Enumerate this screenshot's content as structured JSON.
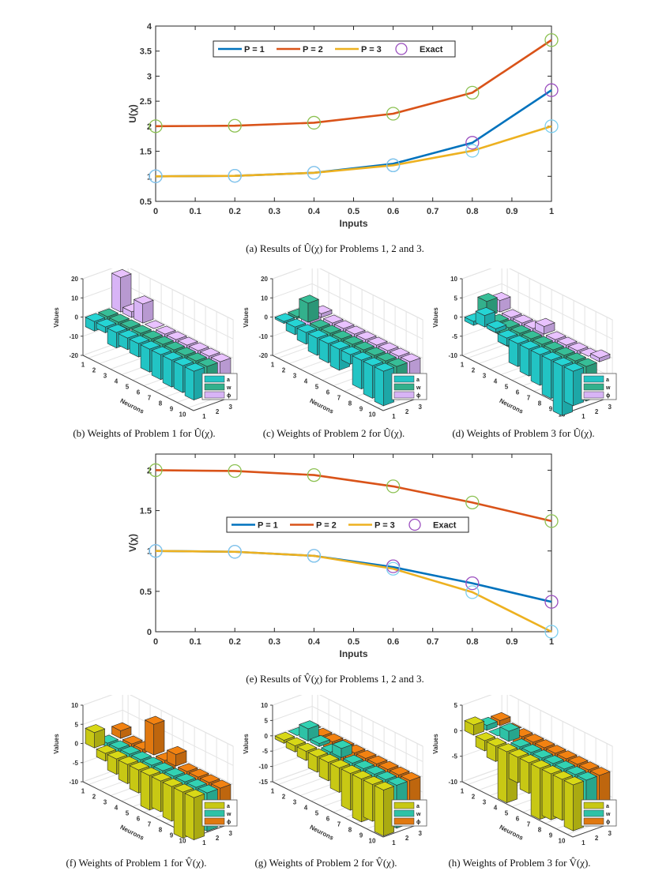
{
  "chart_data": [
    {
      "id": "a",
      "type": "line",
      "title": "",
      "xlabel": "Inputs",
      "ylabel": "U(χ)",
      "xlim": [
        0,
        1
      ],
      "ylim": [
        0.5,
        4
      ],
      "xticks": [
        "0",
        "0.1",
        "0.2",
        "0.3",
        "0.4",
        "0.5",
        "0.6",
        "0.7",
        "0.8",
        "0.9",
        "1"
      ],
      "yticks": [
        "0.5",
        "1",
        "1.5",
        "2",
        "2.5",
        "3",
        "3.5",
        "4"
      ],
      "x": [
        0,
        0.2,
        0.4,
        0.6,
        0.8,
        1
      ],
      "series": [
        {
          "name": "P = 1",
          "color": "#0072BD",
          "values": [
            1,
            1.01,
            1.07,
            1.25,
            1.67,
            2.72
          ]
        },
        {
          "name": "P = 2",
          "color": "#D95319",
          "values": [
            2,
            2.01,
            2.07,
            2.25,
            2.67,
            3.72
          ]
        },
        {
          "name": "P = 3",
          "color": "#EDB120",
          "values": [
            1,
            1.01,
            1.07,
            1.22,
            1.51,
            2.0
          ]
        }
      ],
      "exact": {
        "name": "Exact",
        "color": "#9b4fbf",
        "markers": [
          {
            "color": "#9b4fbf",
            "values": [
              1,
              1.01,
              1.07,
              1.22,
              1.67,
              2.72
            ]
          },
          {
            "color": "#7ccff0",
            "values": [
              1,
              1.01,
              1.07,
              1.22,
              1.51,
              2.0
            ]
          },
          {
            "color": "#8cc152",
            "values": [
              2,
              2.01,
              2.07,
              2.25,
              2.67,
              3.72
            ]
          }
        ]
      },
      "legend": "top-center",
      "caption": "(a) Results of  Û(χ)  for Problems 1, 2 and 3."
    },
    {
      "id": "b",
      "type": "bar3d",
      "zlabel": "Values",
      "xlabel": "Neurons",
      "zlim": [
        -20,
        20
      ],
      "zticks": [
        "-20",
        "-10",
        "0",
        "10",
        "20"
      ],
      "neurons": [
        "1",
        "2",
        "3",
        "4",
        "5",
        "6",
        "7",
        "8",
        "9",
        "10"
      ],
      "series_ticks": [
        "1",
        "2",
        "3"
      ],
      "series": [
        {
          "name": "a",
          "color": "#22c4c4",
          "values": [
            -5,
            -3,
            -8,
            -6,
            -7,
            -12,
            -13,
            -14,
            -14,
            -15
          ]
        },
        {
          "name": "w",
          "color": "#33b08c",
          "values": [
            -2,
            -8,
            -1,
            -8,
            -2,
            -6,
            -5,
            -5,
            -5,
            -12
          ]
        },
        {
          "name": "ϕ",
          "color": "#d8b4f6",
          "values": [
            18,
            3,
            10,
            0,
            -6,
            -3,
            -2,
            -12,
            -12,
            -12
          ]
        }
      ],
      "caption": "(b) Weights of Problem 1 for  Û(χ)."
    },
    {
      "id": "c",
      "type": "bar3d",
      "zlabel": "Values",
      "xlabel": "Neurons",
      "zlim": [
        -20,
        20
      ],
      "zticks": [
        "-20",
        "-10",
        "0",
        "10",
        "20"
      ],
      "neurons": [
        "1",
        "2",
        "3",
        "4",
        "5",
        "6",
        "7",
        "8",
        "9",
        "10"
      ],
      "series_ticks": [
        "1",
        "2",
        "3"
      ],
      "series": [
        {
          "name": "a",
          "color": "#22c4c4",
          "values": [
            -1,
            -4,
            -6,
            -9,
            -10,
            -11,
            -5,
            -15,
            -17,
            -18
          ]
        },
        {
          "name": "w",
          "color": "#33b08c",
          "values": [
            -1,
            10,
            -6,
            -9,
            -7,
            -9,
            -11,
            -14,
            -14,
            -15
          ]
        },
        {
          "name": "ϕ",
          "color": "#d8b4f6",
          "values": [
            -8,
            2,
            -8,
            -10,
            -10,
            -11,
            -13,
            -13,
            -15,
            -16
          ]
        }
      ],
      "caption": "(c) Weights of Problem 2 for  Û(χ)."
    },
    {
      "id": "d",
      "type": "bar3d",
      "zlabel": "Values",
      "xlabel": "Neurons",
      "zlim": [
        -10,
        10
      ],
      "zticks": [
        "-10",
        "-5",
        "0",
        "5",
        "10"
      ],
      "neurons": [
        "1",
        "2",
        "3",
        "4",
        "5",
        "6",
        "7",
        "8",
        "9",
        "10"
      ],
      "series_ticks": [
        "1",
        "2",
        "3"
      ],
      "series": [
        {
          "name": "a",
          "color": "#22c4c4",
          "values": [
            -1,
            3,
            1,
            -2,
            -6,
            -7,
            -8,
            -10,
            -13,
            -9
          ]
        },
        {
          "name": "w",
          "color": "#33b08c",
          "values": [
            4,
            -3,
            -5,
            -5,
            -6,
            -6,
            -6,
            -7,
            -8,
            -9
          ]
        },
        {
          "name": "ϕ",
          "color": "#d8b4f6",
          "values": [
            3,
            -2,
            -3,
            -5,
            2,
            -5,
            -4,
            -1,
            0,
            1
          ]
        }
      ],
      "caption": "(d) Weights of Problem 3 for  Û(χ)."
    },
    {
      "id": "e",
      "type": "line",
      "title": "",
      "xlabel": "Inputs",
      "ylabel": "V(χ)",
      "xlim": [
        0,
        1
      ],
      "ylim": [
        0,
        2.2
      ],
      "xticks": [
        "0",
        "0.1",
        "0.2",
        "0.3",
        "0.4",
        "0.5",
        "0.6",
        "0.7",
        "0.8",
        "0.9",
        "1"
      ],
      "yticks": [
        "0",
        "0.5",
        "1",
        "1.5",
        "2"
      ],
      "x": [
        0,
        0.2,
        0.4,
        0.6,
        0.8,
        1
      ],
      "series": [
        {
          "name": "P = 1",
          "color": "#0072BD",
          "values": [
            1,
            0.99,
            0.94,
            0.8,
            0.6,
            0.37
          ]
        },
        {
          "name": "P = 2",
          "color": "#D95319",
          "values": [
            2,
            1.99,
            1.94,
            1.8,
            1.6,
            1.37
          ]
        },
        {
          "name": "P = 3",
          "color": "#EDB120",
          "values": [
            1,
            0.99,
            0.94,
            0.78,
            0.49,
            0.0
          ]
        }
      ],
      "exact": {
        "name": "Exact",
        "color": "#9b4fbf",
        "markers": [
          {
            "color": "#9b4fbf",
            "values": [
              1,
              0.99,
              0.94,
              0.81,
              0.6,
              0.37
            ]
          },
          {
            "color": "#7ccff0",
            "values": [
              1,
              0.99,
              0.94,
              0.78,
              0.49,
              0.0
            ]
          },
          {
            "color": "#8cc152",
            "values": [
              2,
              1.99,
              1.94,
              1.8,
              1.6,
              1.37
            ]
          }
        ]
      },
      "legend": "center",
      "caption": "(e) Results of  V̂(χ)  for Problems 1, 2 and 3."
    },
    {
      "id": "f",
      "type": "bar3d",
      "zlabel": "Values",
      "xlabel": "Neurons",
      "zlim": [
        -10,
        10
      ],
      "zticks": [
        "-10",
        "-5",
        "0",
        "5",
        "10"
      ],
      "neurons": [
        "1",
        "2",
        "3",
        "4",
        "5",
        "6",
        "7",
        "8",
        "9",
        "10"
      ],
      "series_ticks": [
        "1",
        "2",
        "3"
      ],
      "series": [
        {
          "name": "a",
          "color": "#c8c814",
          "values": [
            4,
            -2,
            -4,
            -5,
            -6,
            -9,
            -8,
            -9,
            -12,
            -11
          ]
        },
        {
          "name": "w",
          "color": "#2ec2a6",
          "values": [
            -1,
            -2,
            -3,
            -4,
            -8,
            -5,
            -7,
            -7,
            -9,
            -10
          ]
        },
        {
          "name": "ϕ",
          "color": "#e07810",
          "values": [
            2,
            -1,
            -1,
            8,
            -3,
            3,
            -8,
            -8,
            -9,
            -10
          ]
        }
      ],
      "caption": "(f) Weights of Problem 1 for  V̂(χ)."
    },
    {
      "id": "g",
      "type": "bar3d",
      "zlabel": "Values",
      "xlabel": "Neurons",
      "zlim": [
        -15,
        10
      ],
      "zticks": [
        "-15",
        "-10",
        "-5",
        "0",
        "5",
        "10"
      ],
      "neurons": [
        "1",
        "2",
        "3",
        "4",
        "5",
        "6",
        "7",
        "8",
        "9",
        "10"
      ],
      "series_ticks": [
        "1",
        "2",
        "3"
      ],
      "series": [
        {
          "name": "a",
          "color": "#c8c814",
          "values": [
            -1,
            -2,
            -3,
            -5,
            -6,
            -8,
            -12,
            -14,
            -12,
            -15
          ]
        },
        {
          "name": "w",
          "color": "#2ec2a6",
          "values": [
            0,
            4,
            1,
            -4,
            3,
            -9,
            -11,
            -12,
            -13,
            -14
          ]
        },
        {
          "name": "ϕ",
          "color": "#e07810",
          "values": [
            0,
            -2,
            -5,
            -7,
            -9,
            -10,
            -11,
            -19,
            -12,
            -14
          ]
        }
      ],
      "caption": "(g) Weights of Problem 2 for  V̂(χ)."
    },
    {
      "id": "h",
      "type": "bar3d",
      "zlabel": "Values",
      "xlabel": "Neurons",
      "zlim": [
        -10,
        5
      ],
      "zticks": [
        "-10",
        "-5",
        "0",
        "5"
      ],
      "neurons": [
        "1",
        "2",
        "3",
        "4",
        "5",
        "6",
        "7",
        "8",
        "9",
        "10"
      ],
      "series_ticks": [
        "1",
        "2",
        "3"
      ],
      "series": [
        {
          "name": "a",
          "color": "#c8c814",
          "values": [
            2,
            -2,
            -3,
            -10,
            -5,
            -6,
            -10,
            -9,
            -8,
            -9
          ]
        },
        {
          "name": "w",
          "color": "#2ec2a6",
          "values": [
            1,
            0,
            2,
            -3,
            -4,
            -5,
            -6,
            -7,
            -8,
            -9
          ]
        },
        {
          "name": "ϕ",
          "color": "#e07810",
          "values": [
            1,
            0,
            -3,
            -3,
            -7,
            -5,
            -6,
            -6,
            -7,
            -8
          ]
        }
      ],
      "caption": "(h) Weights of Problem 3 for  V̂(χ)."
    }
  ]
}
